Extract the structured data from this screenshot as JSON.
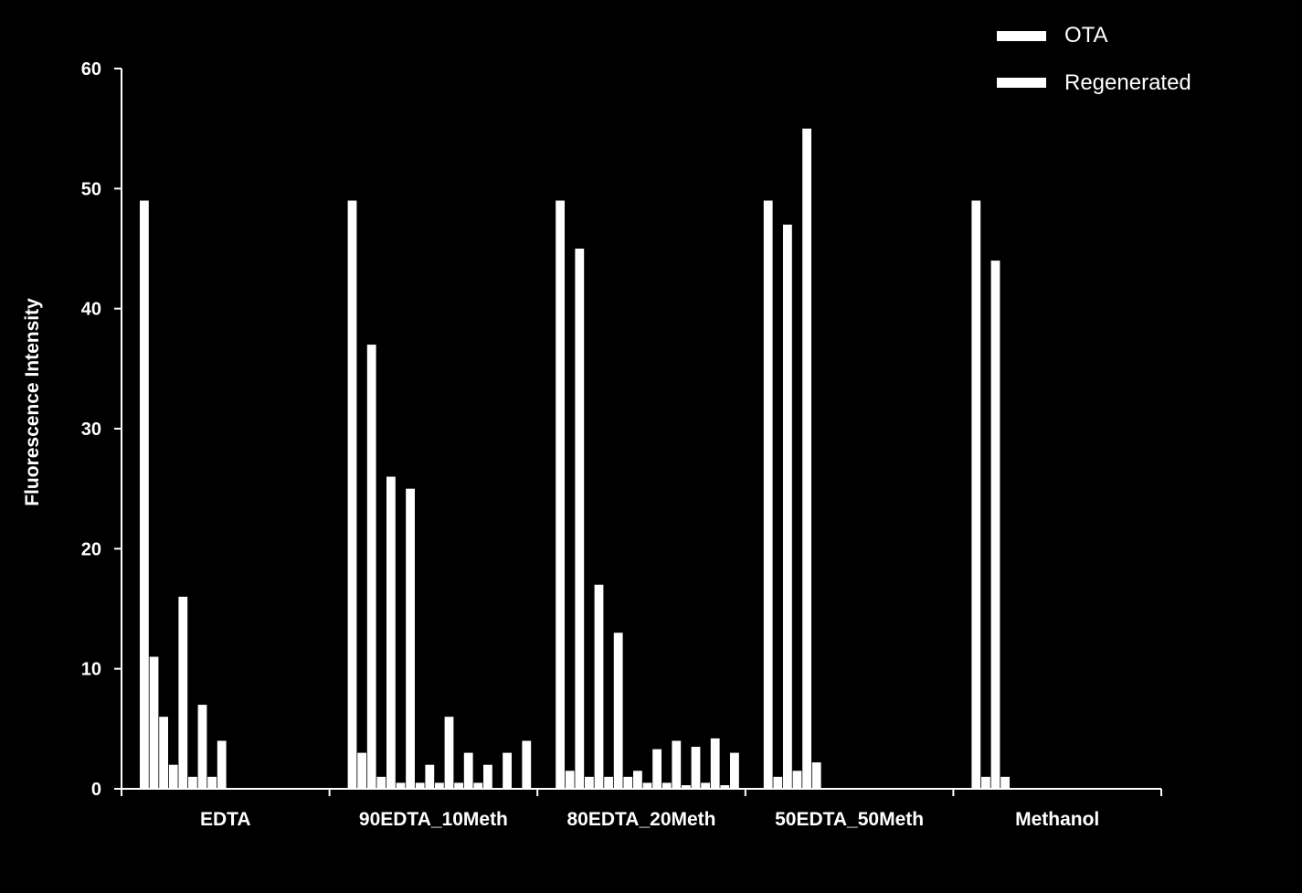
{
  "chart_data": {
    "type": "bar",
    "title": "",
    "xlabel": "",
    "ylabel": "Fluorescence Intensity",
    "ylim": [
      0,
      60
    ],
    "yticks": [
      0,
      10,
      20,
      30,
      40,
      50,
      60
    ],
    "grid": false,
    "legend_position": "top-right",
    "colors": {
      "background": "#000000",
      "ota": "#ffffff",
      "regenerated": "#ffffff",
      "axis": "#ffffff"
    },
    "categories": [
      "EDTA",
      "90EDTA_10Meth",
      "80EDTA_20Meth",
      "50EDTA_50Meth",
      "Methanol"
    ],
    "series": [
      {
        "name": "OTA",
        "values": [
          [
            49,
            6,
            16,
            7,
            4,
            0
          ],
          [
            49,
            37,
            26,
            25,
            2,
            6,
            3,
            2,
            3,
            4
          ],
          [
            49,
            45,
            17,
            13,
            1.5,
            3.3,
            4,
            3.5,
            4.2,
            3
          ],
          [
            49,
            47,
            55
          ],
          [
            49,
            44
          ]
        ]
      },
      {
        "name": "Regenerated",
        "values": [
          [
            11,
            2,
            1,
            1,
            0,
            0
          ],
          [
            3,
            1,
            0.5,
            0.5,
            0.5,
            0.5,
            0.5,
            0,
            0,
            0
          ],
          [
            1.5,
            1,
            1,
            1,
            0.5,
            0.5,
            0.3,
            0.5,
            0.3,
            0
          ],
          [
            1,
            1.5,
            2.2
          ],
          [
            1,
            1
          ]
        ]
      }
    ]
  }
}
